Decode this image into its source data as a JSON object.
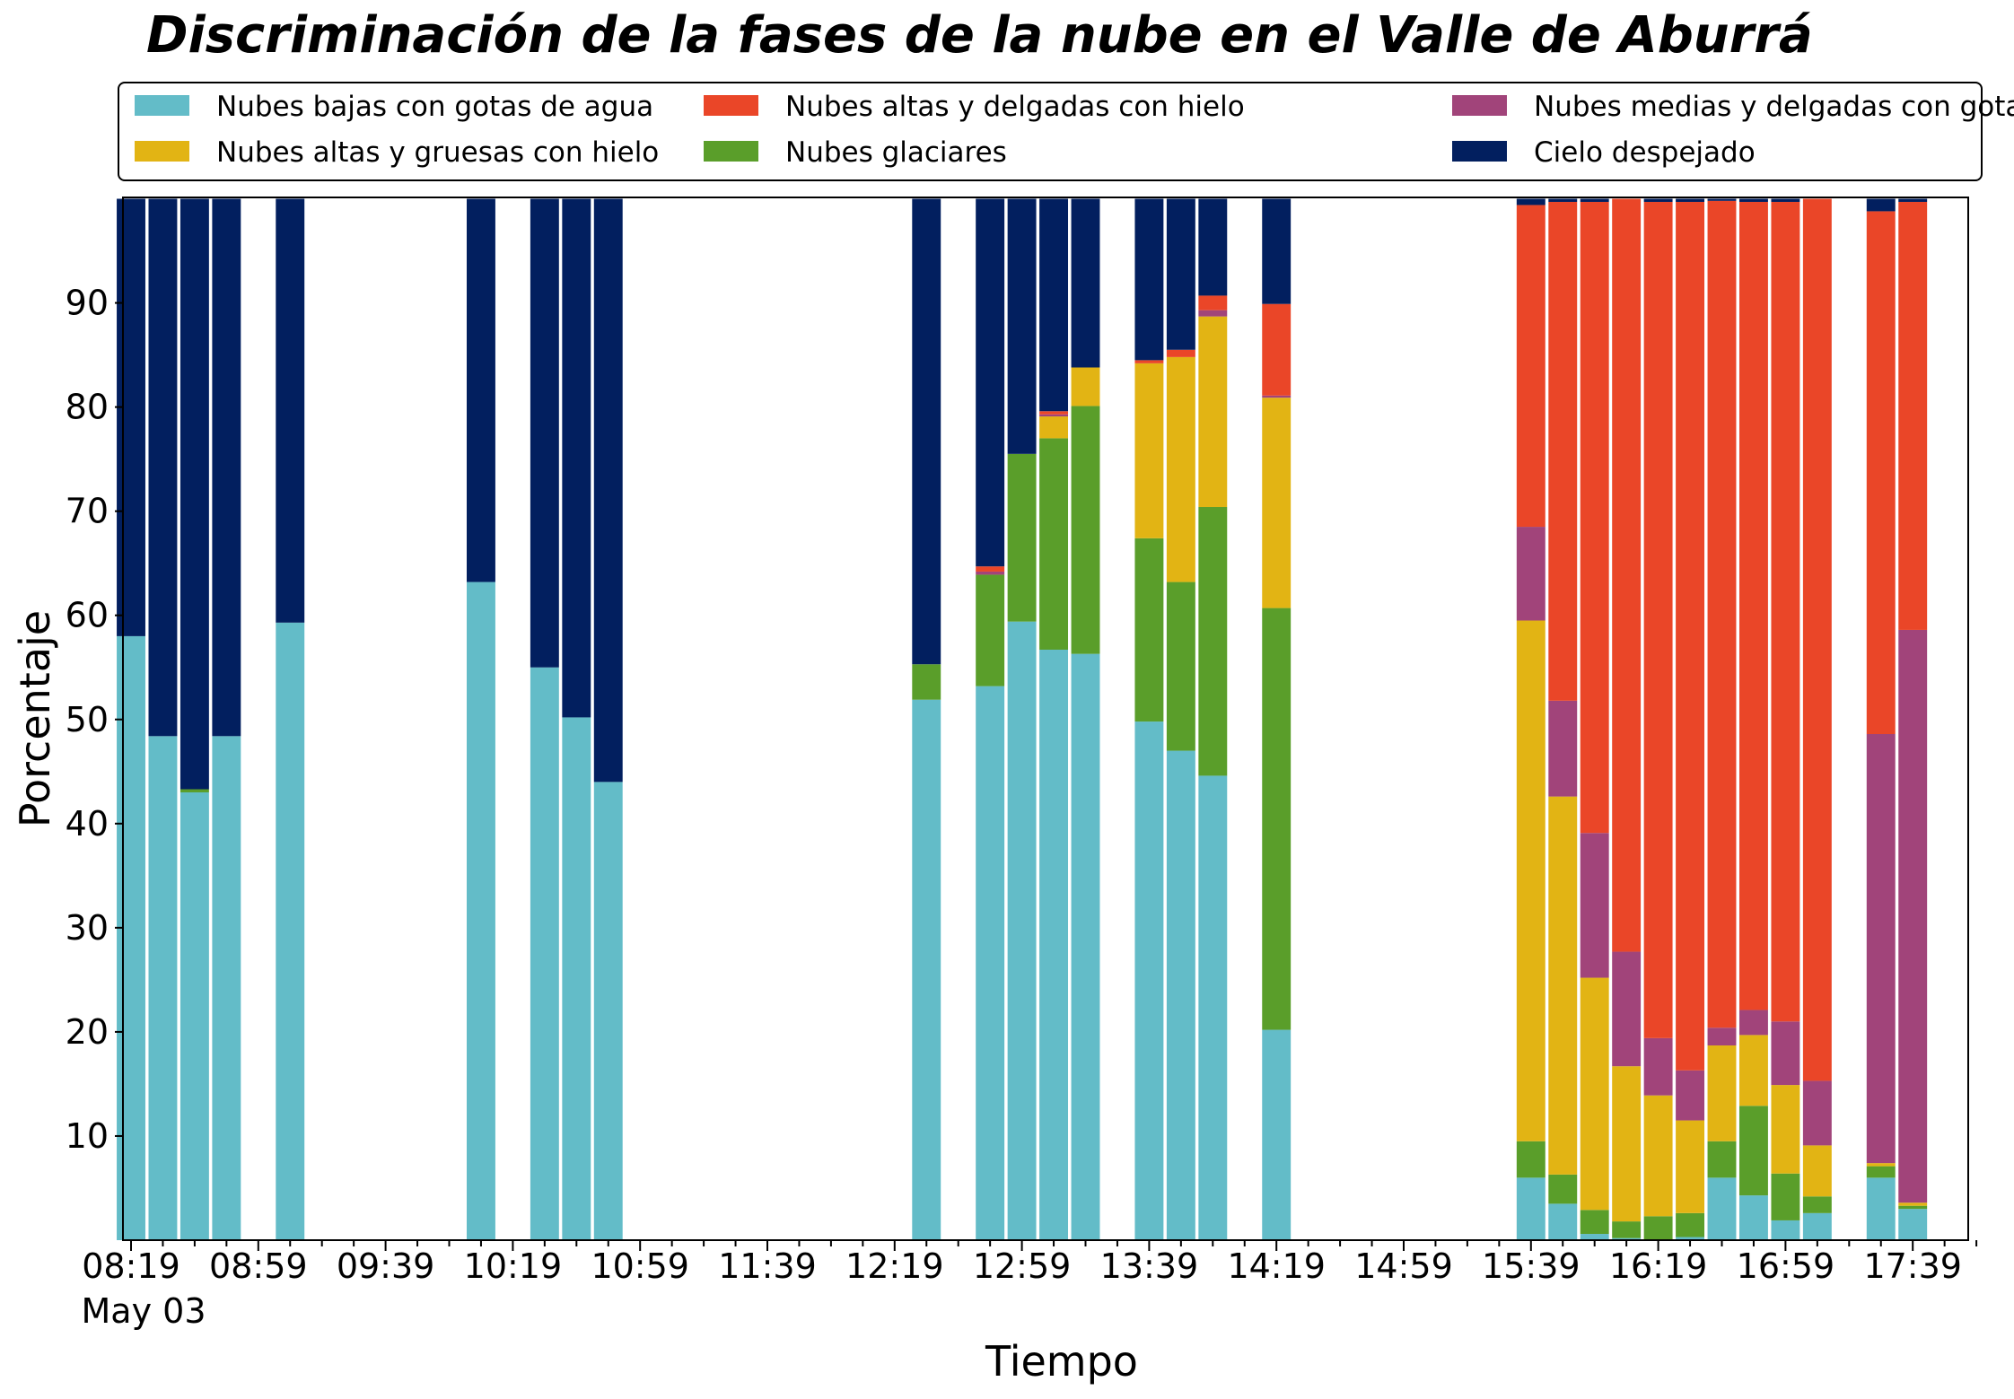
{
  "chart_data": {
    "type": "bar",
    "stacked": true,
    "title": "Discriminación de la fases de la nube en el Valle de Aburrá",
    "xlabel": "Tiempo",
    "ylabel": "Porcentaje",
    "date_label": "May 03",
    "ylim": [
      0,
      100
    ],
    "yticks": [
      10,
      20,
      30,
      40,
      50,
      60,
      70,
      80,
      90
    ],
    "xticks": [
      "08:19",
      "08:59",
      "09:39",
      "10:19",
      "10:59",
      "11:39",
      "12:19",
      "12:59",
      "13:39",
      "14:19",
      "14:59",
      "15:39",
      "16:19",
      "16:59",
      "17:39"
    ],
    "x_start": "08:19",
    "x_end": "17:59",
    "bar_width_minutes": 9,
    "legend_placement": "top, above plot",
    "series": [
      {
        "name": "Nubes bajas con gotas de agua",
        "color": "#63bcc8"
      },
      {
        "name": "Nubes glaciares",
        "color": "#5a9e2a"
      },
      {
        "name": "Nubes altas y gruesas con hielo",
        "color": "#e2b414"
      },
      {
        "name": "Nubes medias y delgadas con gotas de agua",
        "color": "#a1447a"
      },
      {
        "name": "Nubes altas y delgadas con hielo",
        "color": "#ea4628"
      },
      {
        "name": "Cielo despejado",
        "color": "#021f5f"
      }
    ],
    "legend_order": [
      0,
      2,
      4,
      1,
      3,
      5
    ],
    "bars": [
      {
        "time": "08:19",
        "values": [
          58,
          0,
          0,
          0,
          0,
          42
        ]
      },
      {
        "time": "08:29",
        "values": [
          48.4,
          0,
          0,
          0,
          0,
          51.6
        ]
      },
      {
        "time": "08:39",
        "values": [
          43,
          0.3,
          0,
          0,
          0,
          56.7
        ]
      },
      {
        "time": "08:49",
        "values": [
          48.4,
          0,
          0,
          0,
          0,
          51.6
        ]
      },
      {
        "time": "09:09",
        "values": [
          59.3,
          0,
          0,
          0,
          0,
          40.7
        ]
      },
      {
        "time": "10:09",
        "values": [
          63.2,
          0,
          0,
          0,
          0,
          36.8
        ]
      },
      {
        "time": "10:29",
        "values": [
          55,
          0,
          0,
          0,
          0,
          45
        ]
      },
      {
        "time": "10:39",
        "values": [
          50.2,
          0,
          0,
          0,
          0,
          49.8
        ]
      },
      {
        "time": "10:49",
        "values": [
          44,
          0,
          0,
          0,
          0,
          56
        ]
      },
      {
        "time": "12:29",
        "values": [
          51.9,
          3.4,
          0,
          0,
          0,
          44.7
        ]
      },
      {
        "time": "12:49",
        "values": [
          53.2,
          10.7,
          0,
          0.3,
          0.5,
          35.3
        ]
      },
      {
        "time": "12:59",
        "values": [
          59.4,
          16.1,
          0,
          0,
          0,
          24.5
        ]
      },
      {
        "time": "13:09",
        "values": [
          56.7,
          20.3,
          2.1,
          0.2,
          0.3,
          20.4
        ]
      },
      {
        "time": "13:19",
        "values": [
          56.3,
          23.8,
          3.7,
          0,
          0,
          16.2
        ]
      },
      {
        "time": "13:39",
        "values": [
          49.8,
          17.6,
          16.8,
          0,
          0.3,
          15.5
        ]
      },
      {
        "time": "13:49",
        "values": [
          47,
          16.2,
          21.6,
          0,
          0.7,
          14.5
        ]
      },
      {
        "time": "13:59",
        "values": [
          44.6,
          25.8,
          18.3,
          0.6,
          1.4,
          9.3
        ]
      },
      {
        "time": "14:19",
        "values": [
          20.2,
          40.5,
          20.2,
          0.2,
          8.8,
          10.1
        ]
      },
      {
        "time": "15:39",
        "values": [
          6,
          3.5,
          50,
          9,
          30.9,
          0.6
        ]
      },
      {
        "time": "15:49",
        "values": [
          3.5,
          2.8,
          36.3,
          9.2,
          47.9,
          0.3
        ]
      },
      {
        "time": "15:59",
        "values": [
          0.6,
          2.3,
          22.3,
          13.9,
          60.6,
          0.3
        ]
      },
      {
        "time": "16:09",
        "values": [
          0.2,
          1.6,
          14.9,
          11,
          72.3,
          0
        ]
      },
      {
        "time": "16:19",
        "values": [
          0,
          2.3,
          11.6,
          5.5,
          80.3,
          0.3
        ]
      },
      {
        "time": "16:29",
        "values": [
          0.3,
          2.3,
          8.9,
          4.8,
          83.4,
          0.3
        ]
      },
      {
        "time": "16:39",
        "values": [
          6,
          3.5,
          9.2,
          1.7,
          79.4,
          0.2
        ]
      },
      {
        "time": "16:49",
        "values": [
          4.3,
          8.6,
          6.8,
          2.4,
          77.6,
          0.3
        ]
      },
      {
        "time": "16:59",
        "values": [
          1.9,
          4.5,
          8.5,
          6.1,
          78.7,
          0.3
        ]
      },
      {
        "time": "17:09",
        "values": [
          2.6,
          1.6,
          4.9,
          6.2,
          84.7,
          0
        ]
      },
      {
        "time": "17:29",
        "values": [
          6,
          1.1,
          0.3,
          41.2,
          50.2,
          1.2
        ]
      },
      {
        "time": "17:39",
        "values": [
          3,
          0.3,
          0.3,
          55,
          41.1,
          0.3
        ]
      }
    ]
  }
}
